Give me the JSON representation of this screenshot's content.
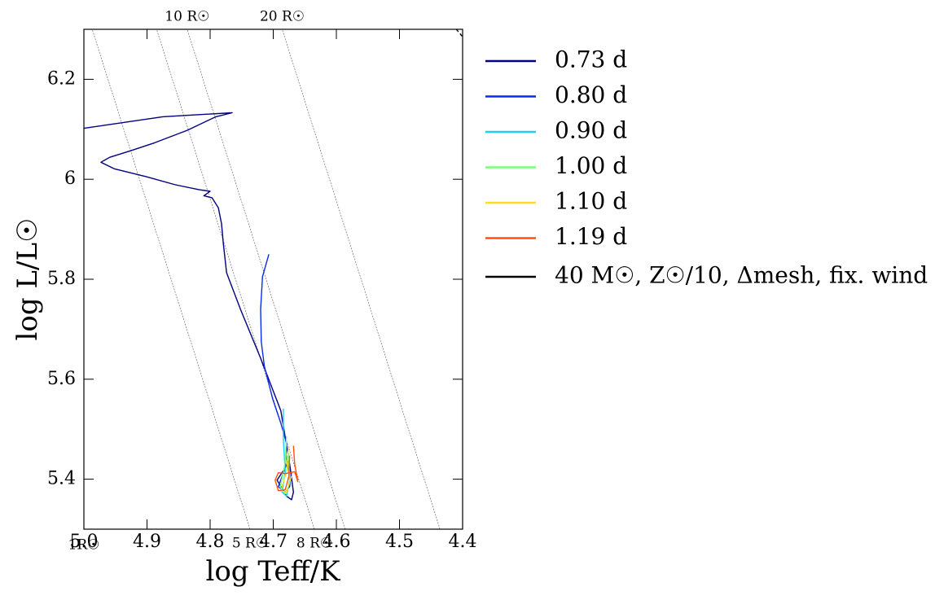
{
  "chart_data": {
    "type": "line",
    "xlabel": "log Teff/K",
    "ylabel": "log L/L☉",
    "xlim": [
      5.0,
      4.4
    ],
    "ylim": [
      5.3,
      6.3
    ],
    "xticks": [
      {
        "value": 5.0,
        "label": "5.0"
      },
      4.9,
      4.8,
      4.7,
      4.6,
      4.5,
      4.4
    ],
    "yticks": [
      5.4,
      5.6,
      5.8,
      6.0,
      6.2
    ],
    "radius_lines": [
      {
        "radius": 5,
        "label": "5 R☉",
        "position": "bottom"
      },
      {
        "radius": 8,
        "label": "8 R☉",
        "position": "bottom"
      },
      {
        "radius": 10,
        "label": "10 R☉",
        "position": "top"
      },
      {
        "radius": 20,
        "label": "20 R☉",
        "position": "top"
      }
    ],
    "annotations": [
      "1R☉"
    ],
    "legend": "outside-upper-right",
    "series": [
      {
        "name": "0.73 d",
        "color": "#00007f",
        "x": [
          5.0,
          4.875,
          4.765,
          4.791,
          4.836,
          4.888,
          4.926,
          4.959,
          4.973,
          4.952,
          4.901,
          4.855,
          4.817,
          4.8,
          4.81,
          4.797,
          4.787,
          4.782,
          4.779,
          4.774,
          4.752,
          4.72,
          4.688,
          4.674,
          4.668,
          4.671,
          4.679,
          4.688,
          4.694,
          4.681,
          4.675
        ],
        "y": [
          6.102,
          6.125,
          6.133,
          6.125,
          6.098,
          6.073,
          6.057,
          6.044,
          6.034,
          6.021,
          6.005,
          5.989,
          5.979,
          5.976,
          5.967,
          5.963,
          5.943,
          5.911,
          5.87,
          5.813,
          5.74,
          5.642,
          5.537,
          5.431,
          5.374,
          5.359,
          5.366,
          5.385,
          5.398,
          5.423,
          5.439
        ]
      },
      {
        "name": "0.80 d",
        "color": "#0a2ce8",
        "x": [
          4.707,
          4.717,
          4.72,
          4.719,
          4.714,
          4.701,
          4.688,
          4.679,
          4.681,
          4.692,
          4.681,
          4.674,
          4.671
        ],
        "y": [
          5.85,
          5.805,
          5.74,
          5.675,
          5.626,
          5.561,
          5.512,
          5.472,
          5.423,
          5.385,
          5.374,
          5.385,
          5.415
        ]
      },
      {
        "name": "0.90 d",
        "color": "#1ad0f5",
        "x": [
          4.684,
          4.684,
          4.681,
          4.686,
          4.679,
          4.674,
          4.679
        ],
        "y": [
          5.541,
          5.48,
          5.415,
          5.374,
          5.366,
          5.398,
          5.447
        ]
      },
      {
        "name": "1.00 d",
        "color": "#7cff79",
        "x": [
          4.679,
          4.681,
          4.689,
          4.681,
          4.674,
          4.676
        ],
        "y": [
          5.486,
          5.433,
          5.384,
          5.371,
          5.392,
          5.449
        ]
      },
      {
        "name": "1.10 d",
        "color": "#f5e11e",
        "x": [
          4.676,
          4.679,
          4.688,
          4.679,
          4.671
        ],
        "y": [
          5.463,
          5.415,
          5.377,
          5.374,
          5.406
        ]
      },
      {
        "name": "1.19 d",
        "color": "#ff5012",
        "x": [
          4.668,
          4.666,
          4.661,
          4.666,
          4.681,
          4.692,
          4.697,
          4.692,
          4.681,
          4.675,
          4.674
        ],
        "y": [
          5.467,
          5.431,
          5.395,
          5.415,
          5.411,
          5.413,
          5.398,
          5.377,
          5.379,
          5.407,
          5.447
        ]
      },
      {
        "name": "40 M☉, Z☉/10, Δmesh, fix. wind",
        "color": "#000000",
        "dashed": true,
        "x": [
          4.41,
          4.4
        ],
        "y": [
          6.3,
          6.285
        ]
      }
    ]
  }
}
